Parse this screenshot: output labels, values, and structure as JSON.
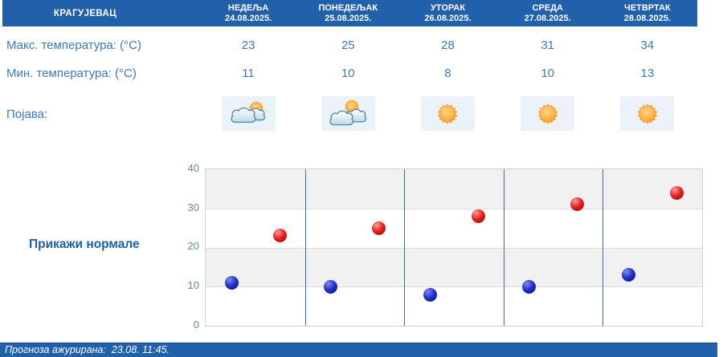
{
  "header": {
    "city": "КРАГУЈЕВАЦ",
    "days": [
      {
        "name": "НЕДЕЉА",
        "date": "24.08.2025."
      },
      {
        "name": "ПОНЕДЕЉАК",
        "date": "25.08.2025."
      },
      {
        "name": "УТОРАК",
        "date": "26.08.2025."
      },
      {
        "name": "СРЕДА",
        "date": "27.08.2025."
      },
      {
        "name": "ЧЕТВРТАК",
        "date": "28.08.2025."
      }
    ]
  },
  "rows": {
    "max_label": "Макс. температура: (°C)",
    "min_label": "Мин. температура: (°C)",
    "phenomenon_label": "Појава:",
    "max_values": [
      "23",
      "25",
      "28",
      "31",
      "34"
    ],
    "min_values": [
      "11",
      "10",
      "8",
      "10",
      "13"
    ],
    "icons": [
      "sun-behind-clouds-icon",
      "sun-over-clouds-icon",
      "sunny-icon",
      "sunny-icon",
      "sunny-icon"
    ]
  },
  "controls": {
    "show_normals_label": "Прикажи нормале"
  },
  "chart_data": {
    "type": "scatter",
    "categories": [
      "24.08.2025.",
      "25.08.2025.",
      "26.08.2025.",
      "27.08.2025.",
      "28.08.2025."
    ],
    "series": [
      {
        "name": "Макс. температура (°C)",
        "color": "#cc1111",
        "values": [
          23,
          25,
          28,
          31,
          34
        ]
      },
      {
        "name": "Мин. температура (°C)",
        "color": "#1122bb",
        "values": [
          11,
          10,
          8,
          10,
          13
        ]
      }
    ],
    "ylim": [
      0,
      40
    ],
    "yticks": [
      "0",
      "10",
      "20",
      "30",
      "40"
    ],
    "grid": "horizontal bands + vertical day separators",
    "legend": "none",
    "title": "",
    "xlabel": "",
    "ylabel": ""
  },
  "footer": {
    "updated_text": "Прогноза ажурирана:  23.08. 11:45."
  },
  "colors": {
    "header_bg": "#2160ab",
    "label_text": "#3e79b8",
    "link_text": "#1b5fa9",
    "band_gray": "#f1f1f1",
    "separator_blue": "#3a6ea5",
    "max_dot": "#cc1111",
    "min_dot": "#1122bb",
    "sun_orange": "#ffa125",
    "icon_box_bg": "#e7f0f7"
  }
}
